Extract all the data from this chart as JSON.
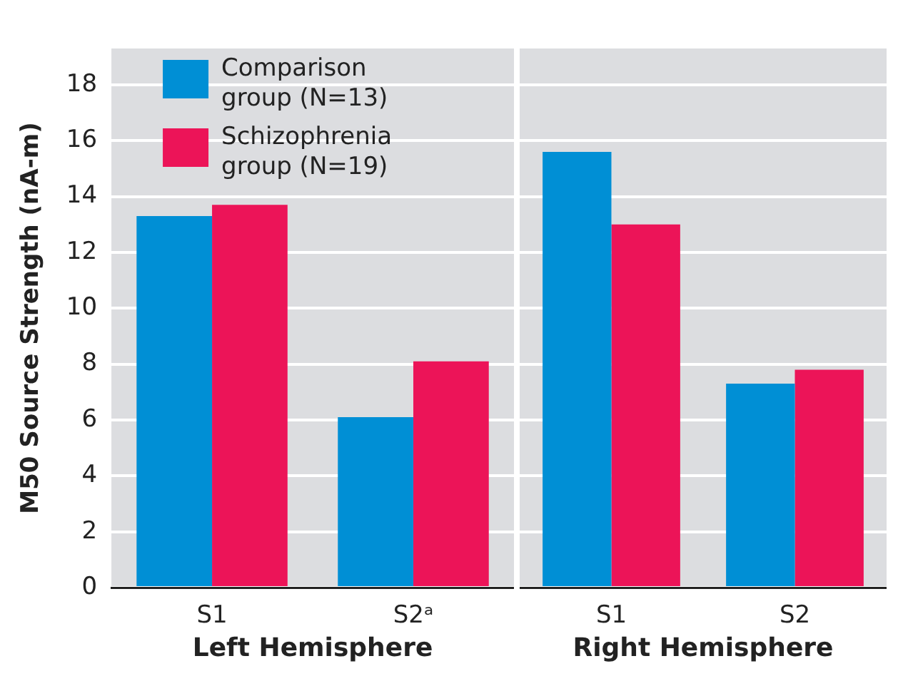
{
  "chart_data": [
    {
      "type": "bar",
      "categories": [
        "S1",
        "S2ᵃ"
      ],
      "xlabel": "Left Hemisphere",
      "ylabel": "M50 Source Strength (nA-m)",
      "ylim": [
        0,
        19.3
      ],
      "yticks": [
        0,
        2,
        4,
        6,
        8,
        10,
        12,
        14,
        16,
        18
      ],
      "grid": "y",
      "legend": "top left",
      "series": [
        {
          "name": "Comparison group (N=13)",
          "color": "#008fd5",
          "values": [
            13.3,
            6.1
          ]
        },
        {
          "name": "Schizophrenia group (N=19)",
          "color": "#ec1458",
          "values": [
            13.7,
            8.1
          ]
        }
      ]
    },
    {
      "type": "bar",
      "categories": [
        "S1",
        "S2"
      ],
      "xlabel": "Right Hemisphere",
      "ylim": [
        0,
        19.3
      ],
      "yticks": [
        0,
        2,
        4,
        6,
        8,
        10,
        12,
        14,
        16,
        18
      ],
      "grid": "y",
      "tick_labels": "x",
      "series": [
        {
          "color": "#008fd5",
          "values": [
            15.6,
            7.3
          ]
        },
        {
          "color": "#ec1458",
          "values": [
            13.0,
            7.8
          ]
        }
      ]
    }
  ]
}
